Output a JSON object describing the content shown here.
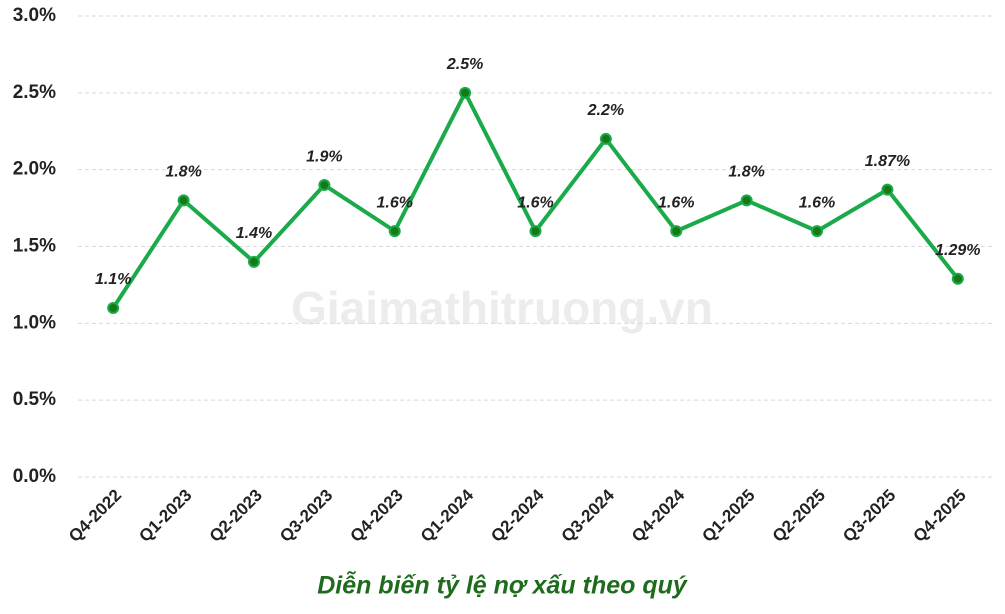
{
  "chart_data": {
    "type": "line",
    "title": "Diễn biến tỷ lệ nợ xấu theo quý",
    "watermark": "Giaimathitruong.vn",
    "categories": [
      "Q4-2022",
      "Q1-2023",
      "Q2-2023",
      "Q3-2023",
      "Q4-2023",
      "Q1-2024",
      "Q2-2024",
      "Q3-2024",
      "Q4-2024",
      "Q1-2025",
      "Q2-2025",
      "Q3-2025",
      "Q4-2025"
    ],
    "values": [
      1.1,
      1.8,
      1.4,
      1.9,
      1.6,
      2.5,
      1.6,
      2.2,
      1.6,
      1.8,
      1.6,
      1.87,
      1.29
    ],
    "value_labels": [
      "1.1%",
      "1.8%",
      "1.4%",
      "1.9%",
      "1.6%",
      "2.5%",
      "1.6%",
      "2.2%",
      "1.6%",
      "1.8%",
      "1.6%",
      "1.87%",
      "1.29%"
    ],
    "color": "#1aaa4a",
    "marker_color": "#157a15",
    "ylim": [
      0,
      3
    ],
    "yticks": [
      {
        "value": 0,
        "label": "0.0%"
      },
      {
        "value": 0.5,
        "label": "0.5%"
      },
      {
        "value": 1,
        "label": "1.0%"
      },
      {
        "value": 1.5,
        "label": "1.5%"
      },
      {
        "value": 2,
        "label": "2.0%"
      },
      {
        "value": 2.5,
        "label": "2.5%"
      },
      {
        "value": 3,
        "label": "3.0%"
      }
    ],
    "grid": true
  }
}
